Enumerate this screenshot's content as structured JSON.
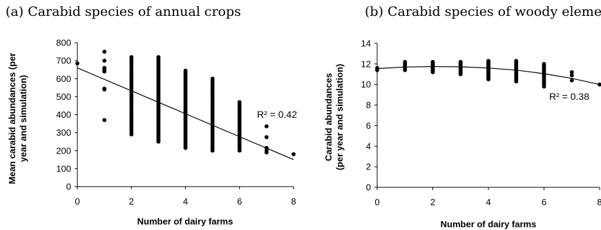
{
  "chart_data": [
    {
      "type": "scatter",
      "panel_title": "(a) Carabid species of annual crops",
      "xlabel": "Number of dairy farms",
      "ylabel_lines": [
        "Mean carabid abundances (per",
        "year and simulation)"
      ],
      "xlim": [
        0,
        8
      ],
      "ylim": [
        0,
        800
      ],
      "x_ticks": [
        0,
        2,
        4,
        6,
        8
      ],
      "y_ticks": [
        0,
        100,
        200,
        300,
        400,
        500,
        600,
        700,
        800
      ],
      "trendline": {
        "type": "linear",
        "x": [
          0,
          8
        ],
        "y": [
          660,
          150
        ]
      },
      "r2_label": "R² = 0.42",
      "series": [
        {
          "x": 0,
          "values": [
            685
          ]
        },
        {
          "x": 1,
          "values": [
            370,
            540,
            545,
            640,
            650,
            660,
            700,
            750
          ]
        },
        {
          "x": 2,
          "range": [
            290,
            720
          ],
          "count": 36
        },
        {
          "x": 3,
          "range": [
            250,
            720
          ],
          "count": 70
        },
        {
          "x": 4,
          "range": [
            215,
            645
          ],
          "count": 50
        },
        {
          "x": 5,
          "range": [
            200,
            600
          ],
          "count": 40
        },
        {
          "x": 6,
          "range": [
            200,
            470
          ],
          "count": 26
        },
        {
          "x": 7,
          "values": [
            190,
            200,
            215,
            275,
            335
          ]
        },
        {
          "x": 8,
          "values": [
            180
          ]
        }
      ]
    },
    {
      "type": "scatter",
      "panel_title": "(b) Carabid species of woody elements",
      "xlabel": "Number of dairy farms",
      "ylabel_lines": [
        "Carabid abundances",
        "(per year and simulation)"
      ],
      "xlim": [
        0,
        8
      ],
      "ylim": [
        0,
        14
      ],
      "x_ticks": [
        0,
        2,
        4,
        6,
        8
      ],
      "y_ticks": [
        0,
        2,
        4,
        6,
        8,
        10,
        12,
        14
      ],
      "trendline": {
        "type": "polynomial",
        "x": [
          0,
          1,
          2,
          3,
          4,
          5,
          6,
          7,
          8
        ],
        "y": [
          11.55,
          11.7,
          11.75,
          11.72,
          11.6,
          11.4,
          11.05,
          10.6,
          10.0
        ]
      },
      "r2_label": "R² = 0.38",
      "series": [
        {
          "x": 0,
          "values": [
            11.4,
            11.6
          ]
        },
        {
          "x": 1,
          "range": [
            11.4,
            12.2
          ],
          "count": 6
        },
        {
          "x": 2,
          "range": [
            11.2,
            12.2
          ],
          "count": 12
        },
        {
          "x": 3,
          "range": [
            11.0,
            12.2
          ],
          "count": 16
        },
        {
          "x": 4,
          "range": [
            10.5,
            12.3
          ],
          "count": 20
        },
        {
          "x": 5,
          "range": [
            10.3,
            12.3
          ],
          "count": 18
        },
        {
          "x": 6,
          "range": [
            9.8,
            12.0
          ],
          "count": 16
        },
        {
          "x": 7,
          "values": [
            10.4,
            10.9,
            11.2
          ]
        },
        {
          "x": 8,
          "values": [
            10.0
          ]
        }
      ]
    }
  ]
}
